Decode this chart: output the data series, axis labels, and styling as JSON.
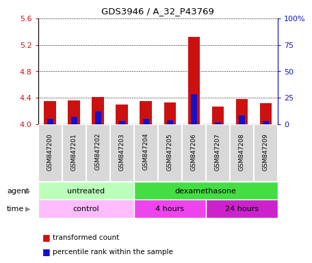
{
  "title": "GDS3946 / A_32_P43769",
  "samples": [
    "GSM847200",
    "GSM847201",
    "GSM847202",
    "GSM847203",
    "GSM847204",
    "GSM847205",
    "GSM847206",
    "GSM847207",
    "GSM847208",
    "GSM847209"
  ],
  "transformed_counts": [
    4.35,
    4.36,
    4.41,
    4.3,
    4.35,
    4.33,
    5.32,
    4.27,
    4.38,
    4.32
  ],
  "percentile_ranks": [
    5,
    7,
    12,
    3,
    5,
    4,
    28,
    2,
    8,
    3
  ],
  "ylim_left": [
    4.0,
    5.6
  ],
  "ylim_right": [
    0,
    100
  ],
  "yticks_left": [
    4.0,
    4.4,
    4.8,
    5.2,
    5.6
  ],
  "yticks_right": [
    0,
    25,
    50,
    75,
    100
  ],
  "ytick_labels_right": [
    "0",
    "25",
    "50",
    "75",
    "100%"
  ],
  "red_color": "#cc1111",
  "blue_color": "#1111cc",
  "agent_row_color_light": "#bbffbb",
  "agent_row_color_dark": "#44dd44",
  "time_row_color_control": "#ffbbff",
  "time_row_color_4h": "#ee44ee",
  "time_row_color_24h": "#cc22cc",
  "left_axis_color": "#cc1111",
  "right_axis_color": "#1111cc",
  "cell_bg_color": "#d8d8d8",
  "cell_border_color": "#ffffff"
}
